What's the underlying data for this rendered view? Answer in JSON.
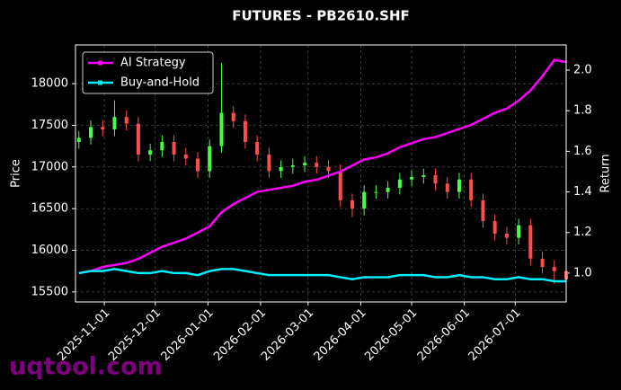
{
  "chart_data": {
    "type": "candlestick",
    "title": "FUTURES - PB2610.SHF",
    "ylabel": "Price",
    "y2label": "Return",
    "watermark": "uqtool.com",
    "x": [
      "2025-10-17",
      "2025-10-24",
      "2025-10-31",
      "2025-11-07",
      "2025-11-14",
      "2025-11-21",
      "2025-11-28",
      "2025-12-05",
      "2025-12-12",
      "2025-12-19",
      "2025-12-26",
      "2026-01-02",
      "2026-01-09",
      "2026-01-16",
      "2026-01-23",
      "2026-01-30",
      "2026-02-06",
      "2026-02-13",
      "2026-02-20",
      "2026-02-27",
      "2026-03-06",
      "2026-03-13",
      "2026-03-20",
      "2026-03-27",
      "2026-04-03",
      "2026-04-10",
      "2026-04-17",
      "2026-04-24",
      "2026-05-01",
      "2026-05-08",
      "2026-05-15",
      "2026-05-22",
      "2026-05-29",
      "2026-06-05",
      "2026-06-12",
      "2026-06-19",
      "2026-06-26",
      "2026-07-03",
      "2026-07-10",
      "2026-07-17",
      "2026-07-24",
      "2026-07-31"
    ],
    "open": [
      17300,
      17350,
      17480,
      17450,
      17600,
      17520,
      17150,
      17200,
      17300,
      17150,
      17100,
      16950,
      17250,
      17650,
      17550,
      17300,
      17150,
      16950,
      17000,
      17020,
      17050,
      17000,
      16950,
      16600,
      16500,
      16700,
      16700,
      16750,
      16850,
      16880,
      16900,
      16800,
      16700,
      16850,
      16600,
      16350,
      16200,
      16150,
      16300,
      15900,
      15800,
      15750
    ],
    "high": [
      17430,
      17560,
      17560,
      17800,
      17680,
      17600,
      17280,
      17380,
      17380,
      17230,
      17180,
      17330,
      18250,
      17730,
      17630,
      17380,
      17230,
      17080,
      17100,
      17130,
      17130,
      17080,
      17030,
      16680,
      16780,
      16780,
      16830,
      16930,
      16960,
      16980,
      16980,
      16880,
      16930,
      16930,
      16680,
      16430,
      16280,
      16380,
      16380,
      15980,
      15880,
      15830
    ],
    "low": [
      17220,
      17270,
      17370,
      17370,
      17440,
      17070,
      17070,
      17120,
      17070,
      17020,
      16870,
      16870,
      17170,
      17470,
      17220,
      17070,
      16870,
      16870,
      16920,
      16940,
      16920,
      16870,
      16520,
      16400,
      16420,
      16620,
      16620,
      16670,
      16770,
      16800,
      16720,
      16620,
      16620,
      16520,
      16270,
      16120,
      16070,
      16070,
      15820,
      15720,
      15600,
      15570
    ],
    "close": [
      17350,
      17480,
      17450,
      17600,
      17520,
      17150,
      17200,
      17300,
      17150,
      17100,
      16950,
      17250,
      17650,
      17550,
      17300,
      17150,
      16950,
      17000,
      17020,
      17050,
      17000,
      16950,
      16600,
      16500,
      16700,
      16700,
      16750,
      16850,
      16880,
      16900,
      16800,
      16700,
      16850,
      16600,
      16350,
      16200,
      16150,
      16300,
      15900,
      15800,
      15750,
      15650
    ],
    "up_color": "#44ff44",
    "down_color": "#ff4d4d",
    "series": [
      {
        "name": "AI Strategy",
        "color": "#ff00ff",
        "axis": "y2",
        "values": [
          1.0,
          1.01,
          1.03,
          1.04,
          1.05,
          1.07,
          1.1,
          1.13,
          1.15,
          1.17,
          1.2,
          1.23,
          1.3,
          1.34,
          1.37,
          1.4,
          1.41,
          1.42,
          1.43,
          1.45,
          1.46,
          1.48,
          1.5,
          1.53,
          1.56,
          1.57,
          1.59,
          1.62,
          1.64,
          1.66,
          1.67,
          1.69,
          1.71,
          1.73,
          1.76,
          1.79,
          1.81,
          1.85,
          1.9,
          1.97,
          2.05,
          2.04
        ]
      },
      {
        "name": "Buy-and-Hold",
        "color": "#00f0ff",
        "axis": "y2",
        "values": [
          1.0,
          1.01,
          1.01,
          1.02,
          1.01,
          1.0,
          1.0,
          1.01,
          1.0,
          1.0,
          0.99,
          1.01,
          1.02,
          1.02,
          1.01,
          1.0,
          0.99,
          0.99,
          0.99,
          0.99,
          0.99,
          0.99,
          0.98,
          0.97,
          0.98,
          0.98,
          0.98,
          0.99,
          0.99,
          0.99,
          0.98,
          0.98,
          0.99,
          0.98,
          0.98,
          0.97,
          0.97,
          0.98,
          0.97,
          0.97,
          0.96,
          0.96
        ]
      }
    ],
    "xlim": [
      "2025-10-15",
      "2026-07-31"
    ],
    "xticks": [
      "2025-11-01",
      "2025-12-01",
      "2026-01-01",
      "2026-02-01",
      "2026-03-01",
      "2026-04-01",
      "2026-05-01",
      "2026-06-01",
      "2026-07-01"
    ],
    "ylim": [
      15380,
      18465
    ],
    "yticks": [
      15500,
      16000,
      16500,
      17000,
      17500,
      18000
    ],
    "y2lim": [
      0.858,
      2.124
    ],
    "y2ticks": [
      {
        "value": 1,
        "label": "1.0"
      },
      1.2,
      1.4,
      1.6,
      1.8,
      {
        "value": 2,
        "label": "2.0"
      }
    ],
    "grid": true,
    "legend": "upper left"
  }
}
